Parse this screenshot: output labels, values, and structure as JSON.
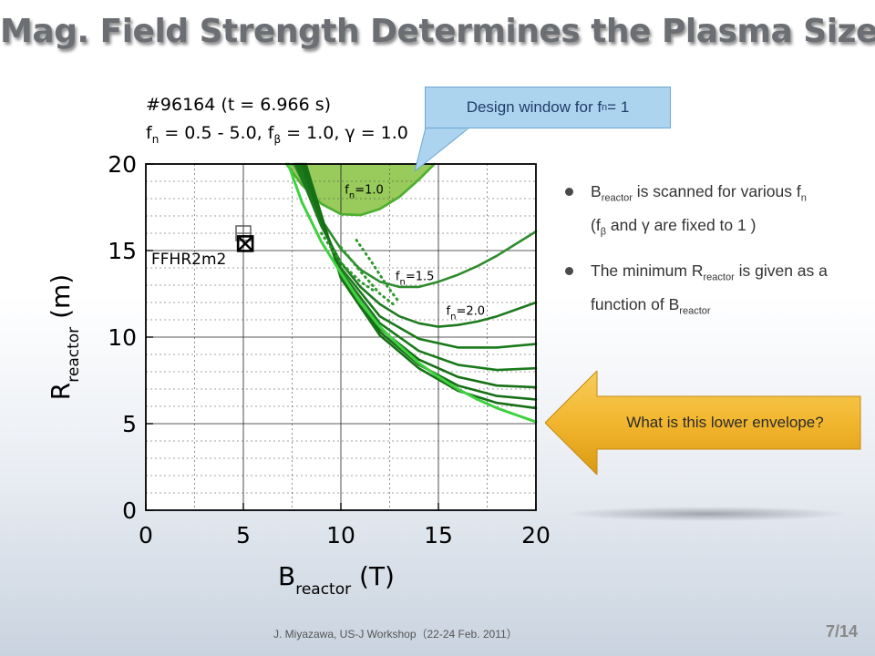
{
  "slide": {
    "title": "Mag. Field Strength Determines the Plasma Size",
    "footer": "J. Miyazawa, US-J Workshop（22-24 Feb. 2011）",
    "page_number": "7/14"
  },
  "plot_header": {
    "line1": "#96164 (t = 6.966 s)",
    "line2_parts": {
      "f": "f",
      "n_sub": "n",
      "range": " = 0.5 - 5.0, f",
      "beta_sub": "β",
      "rest": " = 1.0, γ = 1.0"
    }
  },
  "callout": {
    "text_before": "Design window for f",
    "sub": "n",
    "text_after": " = 1",
    "fill_color": "#add4ee"
  },
  "bullets": [
    {
      "p1": "B",
      "sub1": "reactor",
      "p2": " is scanned for various f",
      "sub2": "n",
      "p3": " (f",
      "sub3": "β",
      "p4": " and γ are fixed to 1 )"
    },
    {
      "p1": "The minimum R",
      "sub1": "reactor",
      "p2": " is given as a function of B",
      "sub2": "reactor"
    }
  ],
  "arrow_callout": {
    "text": "What is this lower envelope?",
    "fill_color": "#f2b62e"
  },
  "chart_data": {
    "type": "line",
    "xlabel": "B",
    "xlabel_sub": "reactor",
    "xlabel_unit": " (T)",
    "ylabel": "R",
    "ylabel_sub": "reactor",
    "ylabel_unit": " (m)",
    "xlim": [
      0,
      20
    ],
    "ylim": [
      0,
      20
    ],
    "xticks": [
      0,
      5,
      10,
      15,
      20
    ],
    "yticks": [
      0,
      5,
      10,
      15,
      20
    ],
    "grid": true,
    "design_window_color": "#8dc44a",
    "curve_labels": [
      {
        "text": "f",
        "sub": "n",
        "rest": "=1.0",
        "x": 10.2,
        "y": 18.3
      },
      {
        "text": "f",
        "sub": "n",
        "rest": "=1.5",
        "x": 12.8,
        "y": 13.3
      },
      {
        "text": "f",
        "sub": "n",
        "rest": "=2.0",
        "x": 15.4,
        "y": 11.3
      }
    ],
    "series": [
      {
        "color": "#4caf2e",
        "points": [
          [
            7.2,
            20
          ],
          [
            8,
            18.8
          ],
          [
            9,
            17.7
          ],
          [
            10,
            17.1
          ],
          [
            11,
            17.05
          ],
          [
            12,
            17.4
          ],
          [
            13,
            18.1
          ],
          [
            14,
            19.1
          ],
          [
            14.8,
            20
          ]
        ]
      },
      {
        "color": "#2e8b2e",
        "points": [
          [
            7.6,
            20
          ],
          [
            9,
            16.8
          ],
          [
            10,
            15.1
          ],
          [
            11,
            13.9
          ],
          [
            12,
            13.2
          ],
          [
            13,
            12.9
          ],
          [
            14,
            12.9
          ],
          [
            15,
            13.2
          ],
          [
            16,
            13.6
          ],
          [
            17,
            14.1
          ],
          [
            18,
            14.7
          ],
          [
            19,
            15.4
          ],
          [
            20,
            16.1
          ]
        ]
      },
      {
        "color": "#1f7a1f",
        "points": [
          [
            7.7,
            20
          ],
          [
            9,
            16.4
          ],
          [
            10,
            14.3
          ],
          [
            11,
            12.9
          ],
          [
            12,
            11.9
          ],
          [
            13,
            11.2
          ],
          [
            14,
            10.8
          ],
          [
            15,
            10.6
          ],
          [
            16,
            10.7
          ],
          [
            17,
            10.9
          ],
          [
            18,
            11.2
          ],
          [
            19,
            11.6
          ],
          [
            20,
            12.0
          ]
        ]
      },
      {
        "color": "#1a7a1a",
        "points": [
          [
            7.8,
            20
          ],
          [
            10,
            14.0
          ],
          [
            12,
            11.2
          ],
          [
            14,
            9.9
          ],
          [
            16,
            9.4
          ],
          [
            18,
            9.4
          ],
          [
            20,
            9.6
          ]
        ]
      },
      {
        "color": "#1a7a1a",
        "points": [
          [
            7.9,
            20
          ],
          [
            10,
            13.8
          ],
          [
            12,
            10.8
          ],
          [
            14,
            9.2
          ],
          [
            16,
            8.4
          ],
          [
            18,
            8.1
          ],
          [
            20,
            8.2
          ]
        ]
      },
      {
        "color": "#167016",
        "points": [
          [
            8.0,
            20
          ],
          [
            10,
            13.6
          ],
          [
            12,
            10.5
          ],
          [
            14,
            8.7
          ],
          [
            16,
            7.7
          ],
          [
            18,
            7.2
          ],
          [
            20,
            7.1
          ]
        ]
      },
      {
        "color": "#167016",
        "points": [
          [
            8.1,
            20
          ],
          [
            10,
            13.5
          ],
          [
            12,
            10.3
          ],
          [
            14,
            8.4
          ],
          [
            16,
            7.2
          ],
          [
            18,
            6.6
          ],
          [
            20,
            6.4
          ]
        ]
      },
      {
        "color": "#167016",
        "points": [
          [
            8.2,
            20
          ],
          [
            10,
            13.4
          ],
          [
            12,
            10.1
          ],
          [
            14,
            8.2
          ],
          [
            16,
            6.9
          ],
          [
            18,
            6.2
          ],
          [
            20,
            5.9
          ]
        ]
      },
      {
        "color": "#3fd13f",
        "points": [
          [
            7.3,
            20
          ],
          [
            8,
            17.8
          ],
          [
            9,
            15.5
          ],
          [
            10,
            13.7
          ],
          [
            11,
            12.0
          ],
          [
            12,
            10.6
          ],
          [
            13,
            9.5
          ],
          [
            14,
            8.5
          ],
          [
            15,
            7.7
          ],
          [
            16,
            7.0
          ],
          [
            17,
            6.4
          ],
          [
            18,
            5.9
          ],
          [
            19,
            5.5
          ],
          [
            20,
            5.1
          ]
        ]
      }
    ],
    "dotted_series": [
      {
        "color": "#2e9a2e",
        "points": [
          [
            9.0,
            16.0
          ],
          [
            10.0,
            14.3
          ],
          [
            11.0,
            13.2
          ],
          [
            11.8,
            12.6
          ]
        ]
      },
      {
        "color": "#2e9a2e",
        "points": [
          [
            10.0,
            15.2
          ],
          [
            11.0,
            13.8
          ],
          [
            12.0,
            12.5
          ],
          [
            12.8,
            11.8
          ]
        ]
      },
      {
        "color": "#2e9a2e",
        "points": [
          [
            10.8,
            15.6
          ],
          [
            11.6,
            14.3
          ],
          [
            12.4,
            12.9
          ],
          [
            13.0,
            12.0
          ]
        ]
      }
    ],
    "markers": [
      {
        "label": "FFHR2m2",
        "x": 5.0,
        "y": 16.0,
        "kind": "boxplus"
      },
      {
        "label": "",
        "x": 5.1,
        "y": 15.4,
        "kind": "boxcross"
      }
    ]
  }
}
